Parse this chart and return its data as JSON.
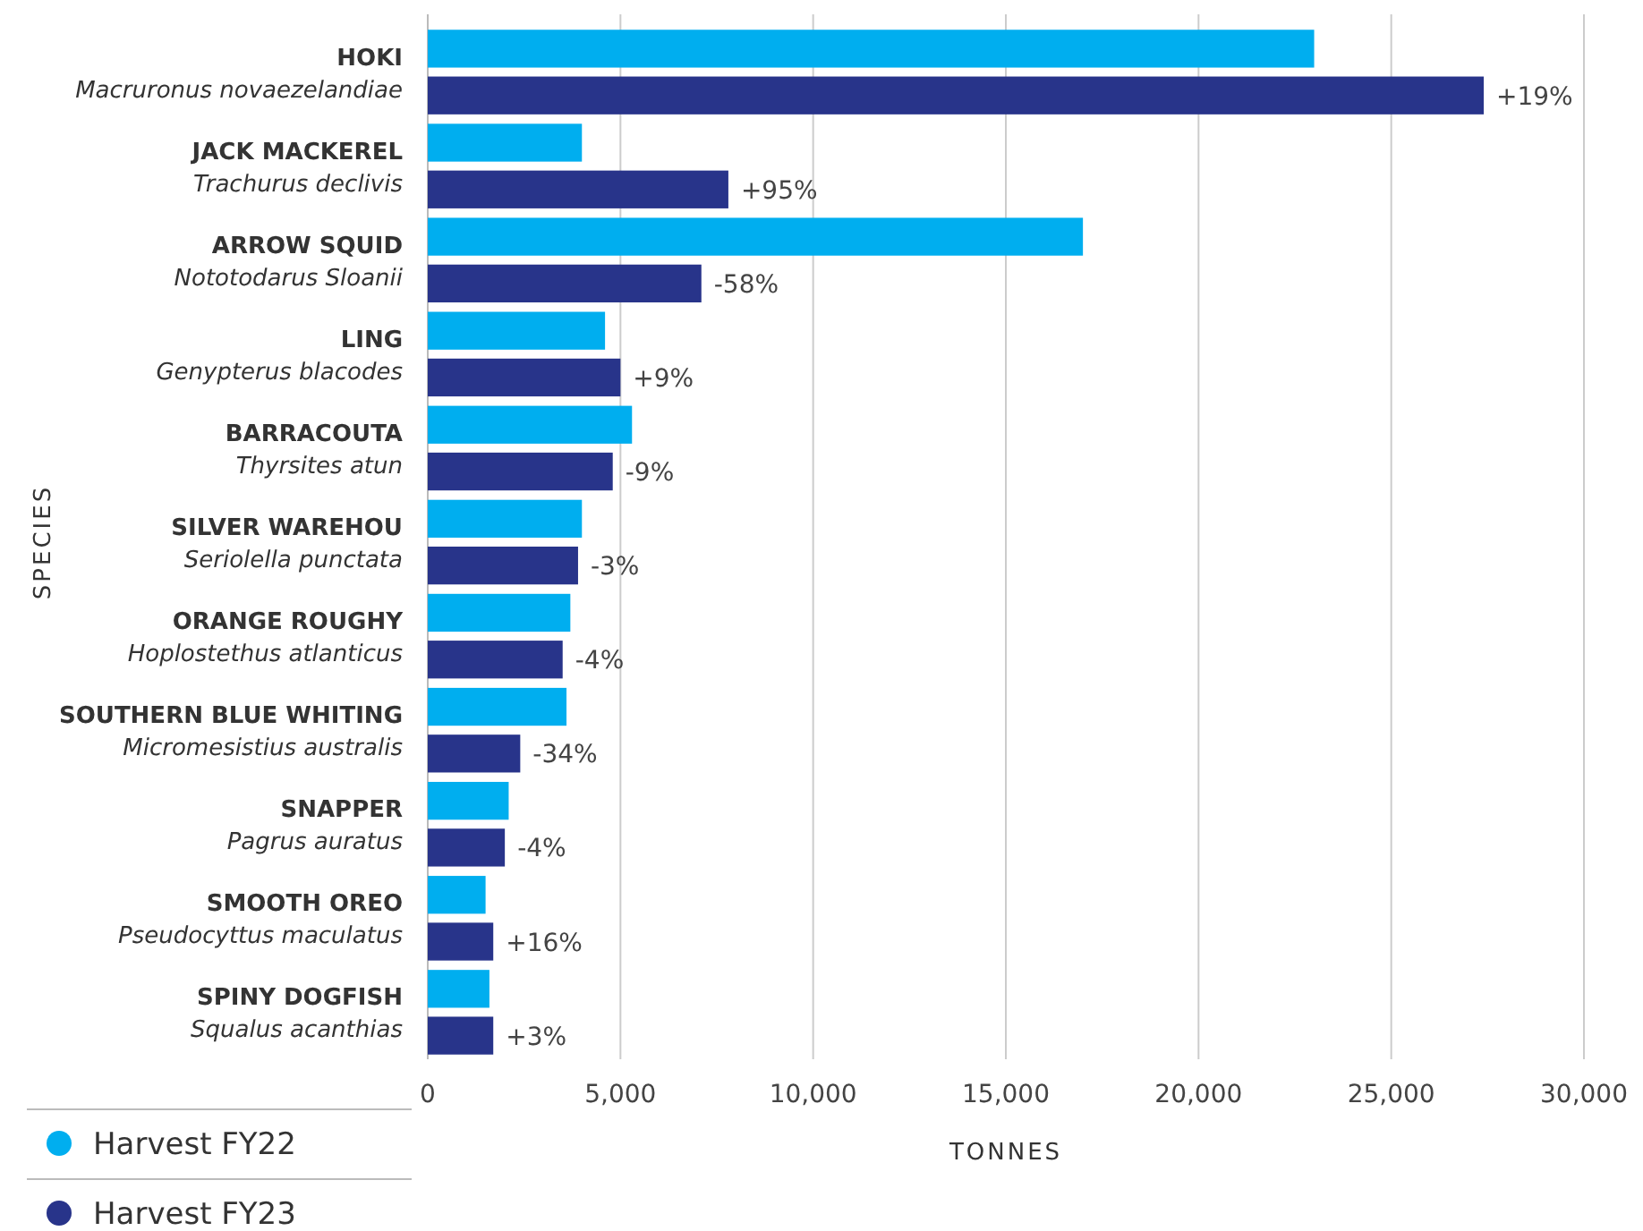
{
  "chart_data": {
    "type": "bar",
    "orientation": "horizontal",
    "categories": [
      "HOKI\nMacruronus novaezelandiae",
      "JACK MACKEREL\nTrachurus declivis",
      "ARROW SQUID\nNototodarus Sloanii",
      "LING\nGenypterus blacodes",
      "BARRACOUTA\nThyrsites atun",
      "SILVER WAREHOU\nSeriolella punctata",
      "ORANGE ROUGHY\nHoplostethus atlanticus",
      "SOUTHERN BLUE WHITING\nMicromesistius australis",
      "SNAPPER\nPagrus auratus",
      "SMOOTH OREO\nPseudocyttus maculatus",
      "SPINY DOGFISH\nSqualus acanthias"
    ],
    "series": [
      {
        "name": "Harvest FY22",
        "color": "#00aeef",
        "values": [
          23000,
          4000,
          17000,
          4600,
          5300,
          4000,
          3700,
          3600,
          2100,
          1500,
          1600
        ]
      },
      {
        "name": "Harvest FY23",
        "color": "#28348a",
        "values": [
          27400,
          7800,
          7100,
          5000,
          4800,
          3900,
          3500,
          2400,
          2000,
          1700,
          1700
        ]
      }
    ],
    "annotations": [
      {
        "text": "+19%",
        "x": 27400,
        "y": "HOKI\nMacruronus novaezelandiae"
      },
      {
        "text": "+95%",
        "x": 7800,
        "y": "JACK MACKEREL\nTrachurus declivis"
      },
      {
        "text": "-58%",
        "x": 7100,
        "y": "ARROW SQUID\nNototodarus Sloanii"
      },
      {
        "text": "+9%",
        "x": 5000,
        "y": "LING\nGenypterus blacodes"
      },
      {
        "text": "-9%",
        "x": 4800,
        "y": "BARRACOUTA\nThyrsites atun"
      },
      {
        "text": "-3%",
        "x": 3900,
        "y": "SILVER WAREHOU\nSeriolella punctata"
      },
      {
        "text": "-4%",
        "x": 3500,
        "y": "ORANGE ROUGHY\nHoplostethus atlanticus"
      },
      {
        "text": "-34%",
        "x": 2400,
        "y": "SOUTHERN BLUE WHITING\nMicromesistius australis"
      },
      {
        "text": "-4%",
        "x": 2000,
        "y": "SNAPPER\nPagrus auratus"
      },
      {
        "text": "+16%",
        "x": 1700,
        "y": "SMOOTH OREO\nPseudocyttus maculatus"
      },
      {
        "text": "+3%",
        "x": 1700,
        "y": "SPINY DOGFISH\nSqualus acanthias"
      }
    ],
    "xlim": [
      0,
      30000
    ],
    "xticks": [
      {
        "value": 0,
        "label": "0"
      },
      {
        "value": 5000,
        "label": "5,000"
      },
      {
        "value": 10000,
        "label": "10,000"
      },
      {
        "value": 15000,
        "label": "15,000"
      },
      {
        "value": 20000,
        "label": "20,000"
      },
      {
        "value": 25000,
        "label": "25,000"
      },
      {
        "value": 30000,
        "label": "30,000"
      }
    ],
    "xlabel": "TONNES",
    "ylabel": "SPECIES",
    "grid": "x",
    "legend": "bottom left"
  }
}
